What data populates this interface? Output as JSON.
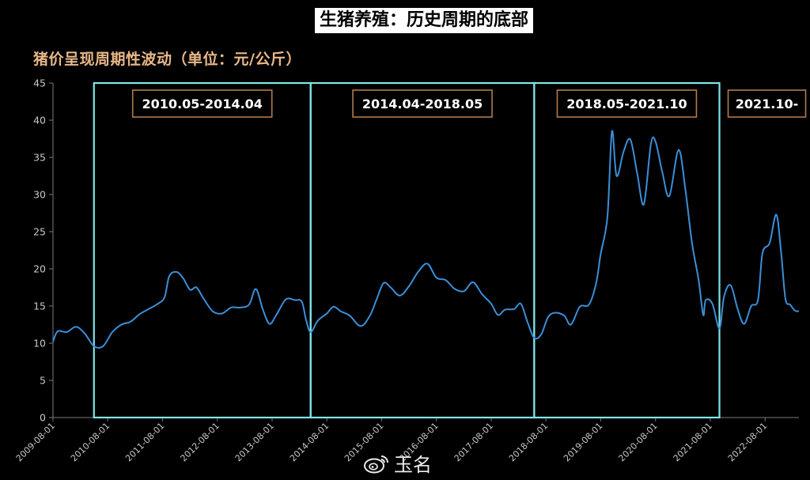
{
  "title": "生猪养殖：历史周期的底部",
  "subtitle": "猪价呈现周期性波动（单位：元/公斤）",
  "watermark": {
    "text": "玉名",
    "icon": "weibo-icon"
  },
  "colors": {
    "line": "#3a8fd8",
    "box": "#7fe6e6",
    "label_border": "#b07a4a",
    "axis": "#7a7a7a",
    "tick_text": "#c8c8c8"
  },
  "chart_data": {
    "type": "line",
    "title": "猪价呈现周期性波动（单位：元/公斤）",
    "ylabel": "",
    "xlabel": "",
    "ylim": [
      0,
      45
    ],
    "yticks": [
      0,
      5,
      10,
      15,
      20,
      25,
      30,
      35,
      40,
      45
    ],
    "xlim": [
      "2009-08-01",
      "2023-03-15"
    ],
    "xtick_labels": [
      "2009-08-01",
      "2010-08-01",
      "2011-08-01",
      "2012-08-01",
      "2013-08-01",
      "2014-08-01",
      "2015-08-01",
      "2016-08-01",
      "2017-08-01",
      "2018-08-01",
      "2019-08-01",
      "2020-08-01",
      "2021-08-01",
      "2022-08-01"
    ],
    "grid": false,
    "series": [
      {
        "name": "",
        "points": [
          [
            "2009-08-01",
            10.2
          ],
          [
            "2009-09-01",
            11.6
          ],
          [
            "2009-11-01",
            11.5
          ],
          [
            "2010-01-01",
            12.2
          ],
          [
            "2010-03-01",
            11.3
          ],
          [
            "2010-05-01",
            9.6
          ],
          [
            "2010-07-01",
            9.6
          ],
          [
            "2010-09-01",
            11.5
          ],
          [
            "2010-11-01",
            12.5
          ],
          [
            "2011-01-01",
            12.9
          ],
          [
            "2011-03-01",
            13.9
          ],
          [
            "2011-05-01",
            14.6
          ],
          [
            "2011-07-01",
            15.3
          ],
          [
            "2011-08-15",
            16.2
          ],
          [
            "2011-09-15",
            19.0
          ],
          [
            "2011-11-01",
            19.6
          ],
          [
            "2011-12-15",
            18.8
          ],
          [
            "2012-02-01",
            17.2
          ],
          [
            "2012-03-15",
            17.5
          ],
          [
            "2012-05-01",
            16.0
          ],
          [
            "2012-07-01",
            14.3
          ],
          [
            "2012-09-01",
            14.0
          ],
          [
            "2012-11-01",
            14.8
          ],
          [
            "2013-01-01",
            14.8
          ],
          [
            "2013-03-01",
            15.2
          ],
          [
            "2013-04-15",
            17.3
          ],
          [
            "2013-06-01",
            14.5
          ],
          [
            "2013-07-15",
            12.6
          ],
          [
            "2013-09-01",
            13.9
          ],
          [
            "2013-11-01",
            15.9
          ],
          [
            "2014-01-01",
            15.8
          ],
          [
            "2014-02-15",
            15.6
          ],
          [
            "2014-03-15",
            13.2
          ],
          [
            "2014-04-15",
            11.5
          ],
          [
            "2014-06-01",
            13.0
          ],
          [
            "2014-08-01",
            14.0
          ],
          [
            "2014-09-15",
            14.9
          ],
          [
            "2014-11-01",
            14.3
          ],
          [
            "2015-01-01",
            13.7
          ],
          [
            "2015-03-15",
            12.3
          ],
          [
            "2015-05-15",
            13.7
          ],
          [
            "2015-07-01",
            16.0
          ],
          [
            "2015-08-15",
            18.1
          ],
          [
            "2015-10-01",
            17.5
          ],
          [
            "2015-12-01",
            16.4
          ],
          [
            "2016-02-01",
            17.7
          ],
          [
            "2016-04-01",
            19.6
          ],
          [
            "2016-06-01",
            20.7
          ],
          [
            "2016-08-01",
            18.8
          ],
          [
            "2016-10-01",
            18.5
          ],
          [
            "2016-12-01",
            17.3
          ],
          [
            "2017-02-01",
            17.0
          ],
          [
            "2017-04-01",
            18.2
          ],
          [
            "2017-06-01",
            16.6
          ],
          [
            "2017-08-01",
            15.3
          ],
          [
            "2017-09-15",
            13.8
          ],
          [
            "2017-11-01",
            14.5
          ],
          [
            "2018-01-01",
            14.6
          ],
          [
            "2018-02-15",
            15.3
          ],
          [
            "2018-04-01",
            12.8
          ],
          [
            "2018-05-15",
            10.7
          ],
          [
            "2018-07-01",
            11.2
          ],
          [
            "2018-08-15",
            13.5
          ],
          [
            "2018-10-01",
            14.1
          ],
          [
            "2018-12-01",
            13.7
          ],
          [
            "2019-01-15",
            12.5
          ],
          [
            "2019-03-15",
            14.9
          ],
          [
            "2019-05-15",
            15.2
          ],
          [
            "2019-07-01",
            18.0
          ],
          [
            "2019-08-01",
            22.0
          ],
          [
            "2019-09-15",
            27.0
          ],
          [
            "2019-10-15",
            38.5
          ],
          [
            "2019-11-15",
            32.5
          ],
          [
            "2020-01-01",
            35.8
          ],
          [
            "2020-02-15",
            37.4
          ],
          [
            "2020-04-01",
            32.8
          ],
          [
            "2020-05-15",
            28.7
          ],
          [
            "2020-07-01",
            36.8
          ],
          [
            "2020-08-01",
            37.1
          ],
          [
            "2020-09-15",
            33.0
          ],
          [
            "2020-11-01",
            29.8
          ],
          [
            "2021-01-01",
            36.0
          ],
          [
            "2021-02-15",
            30.8
          ],
          [
            "2021-04-01",
            23.5
          ],
          [
            "2021-05-15",
            18.5
          ],
          [
            "2021-06-15",
            13.8
          ],
          [
            "2021-07-01",
            15.8
          ],
          [
            "2021-08-15",
            15.3
          ],
          [
            "2021-10-01",
            12.0
          ],
          [
            "2021-11-01",
            16.3
          ],
          [
            "2021-12-15",
            17.8
          ],
          [
            "2022-02-01",
            14.5
          ],
          [
            "2022-03-15",
            12.6
          ],
          [
            "2022-05-01",
            15.0
          ],
          [
            "2022-06-15",
            15.8
          ],
          [
            "2022-07-15",
            22.1
          ],
          [
            "2022-09-01",
            23.5
          ],
          [
            "2022-10-15",
            27.3
          ],
          [
            "2022-11-15",
            22.5
          ],
          [
            "2022-12-15",
            16.0
          ],
          [
            "2023-01-15",
            15.2
          ],
          [
            "2023-02-15",
            14.4
          ],
          [
            "2023-03-15",
            14.3
          ]
        ]
      }
    ],
    "cycles": [
      {
        "label": "2010.05-2014.04",
        "start": "2010-05-01",
        "end": "2014-04-15"
      },
      {
        "label": "2014.04-2018.05",
        "start": "2014-04-15",
        "end": "2018-05-15"
      },
      {
        "label": "2018.05-2021.10",
        "start": "2018-05-15",
        "end": "2021-10-01"
      },
      {
        "label": "2021.10-",
        "start": "2021-10-01",
        "end": null
      }
    ]
  }
}
